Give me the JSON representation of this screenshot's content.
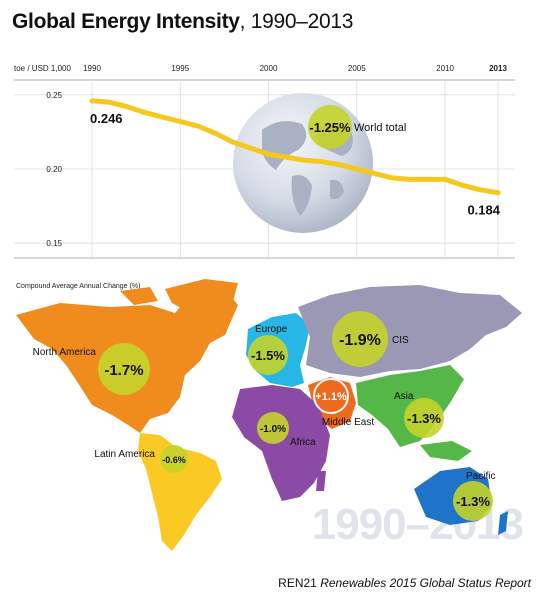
{
  "title_bold": "Global Energy Intensity",
  "title_rest": ", 1990–2013",
  "chart_data": {
    "type": "line",
    "ylabel": "toe / USD 1,000",
    "x_ticks": [
      "1990",
      "1995",
      "2000",
      "2005",
      "2010",
      "2013"
    ],
    "y_ticks": [
      "0.25",
      "0.20",
      "0.15"
    ],
    "ylim": [
      0.14,
      0.26
    ],
    "xlim": [
      1990,
      2013
    ],
    "grid": true,
    "series": [
      {
        "name": "World total",
        "color": "#f5c81e",
        "x": [
          1990,
          1991,
          1992,
          1993,
          1994,
          1995,
          1996,
          1997,
          1998,
          1999,
          2000,
          2001,
          2002,
          2003,
          2004,
          2005,
          2006,
          2007,
          2008,
          2009,
          2010,
          2011,
          2012,
          2013
        ],
        "y": [
          0.246,
          0.245,
          0.242,
          0.238,
          0.235,
          0.232,
          0.229,
          0.224,
          0.218,
          0.214,
          0.21,
          0.208,
          0.206,
          0.205,
          0.203,
          0.2,
          0.197,
          0.194,
          0.193,
          0.193,
          0.193,
          0.189,
          0.186,
          0.184
        ]
      }
    ],
    "data_labels": [
      {
        "text": "0.246",
        "x": 1990,
        "y": 0.246
      },
      {
        "text": "0.184",
        "x": 2013,
        "y": 0.184
      }
    ],
    "annotation": {
      "badge": "-1.25%",
      "label": "World total"
    }
  },
  "map": {
    "subtitle": "Compound Average Annual Change (%)",
    "watermark": "1990–2013",
    "regions": [
      {
        "name": "North America",
        "value": "-1.7%",
        "color": "#f08c1e"
      },
      {
        "name": "Latin America",
        "value": "-0.6%",
        "color": "#fbc924"
      },
      {
        "name": "Europe",
        "value": "-1.5%",
        "color": "#27b6e6"
      },
      {
        "name": "CIS",
        "value": "-1.9%",
        "color": "#9a98b4"
      },
      {
        "name": "Middle East",
        "value": "+1.1%",
        "color": "#ee6a1e"
      },
      {
        "name": "Africa",
        "value": "-1.0%",
        "color": "#8b4aa5"
      },
      {
        "name": "Asia",
        "value": "-1.3%",
        "color": "#55b748"
      },
      {
        "name": "Pacific",
        "value": "-1.3%",
        "color": "#1f73c8"
      }
    ]
  },
  "footer_org": "REN21",
  "footer_report": "Renewables 2015 Global Status Report"
}
